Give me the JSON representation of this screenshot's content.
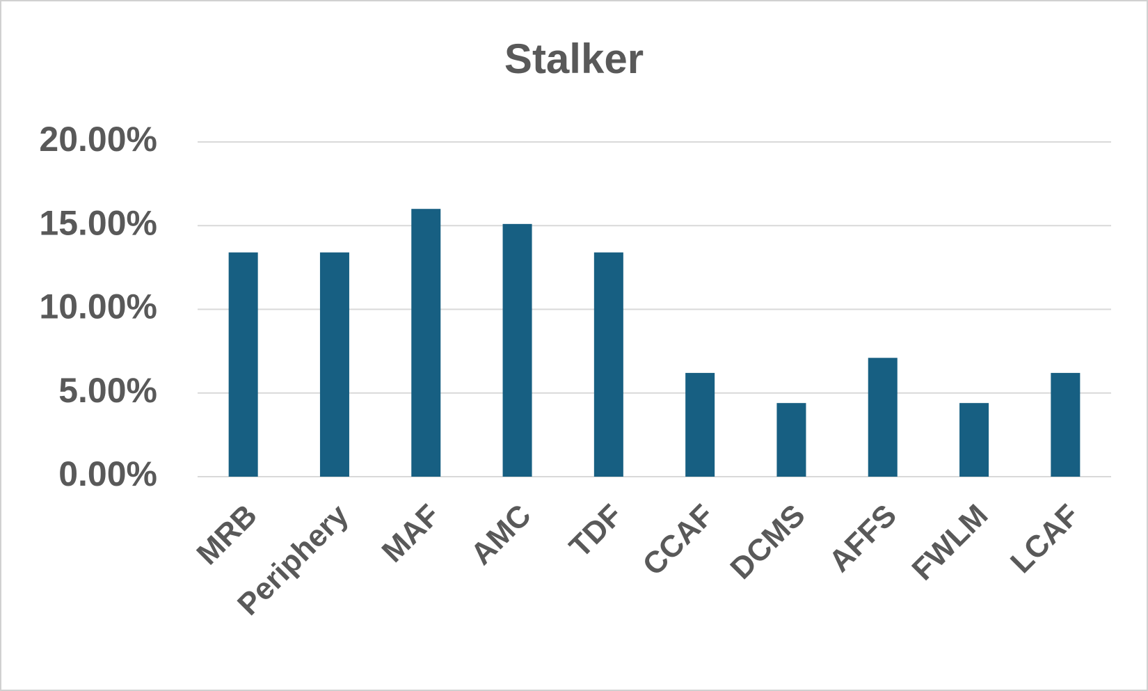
{
  "chart_data": {
    "type": "bar",
    "title": "Stalker",
    "categories": [
      "MRB",
      "Periphery",
      "MAF",
      "AMC",
      "TDF",
      "CCAF",
      "DCMS",
      "AFFS",
      "FWLM",
      "LCAF"
    ],
    "values": [
      13.4,
      13.4,
      16.0,
      15.1,
      13.4,
      6.2,
      4.4,
      7.1,
      4.4,
      6.2
    ],
    "color": "#175f82",
    "ylim": [
      0,
      20
    ],
    "yticks": [
      {
        "value": 0,
        "label": "0.00%"
      },
      {
        "value": 5,
        "label": "5.00%"
      },
      {
        "value": 10,
        "label": "10.00%"
      },
      {
        "value": 15,
        "label": "15.00%"
      },
      {
        "value": 20,
        "label": "20.00%"
      }
    ],
    "grid": true
  }
}
